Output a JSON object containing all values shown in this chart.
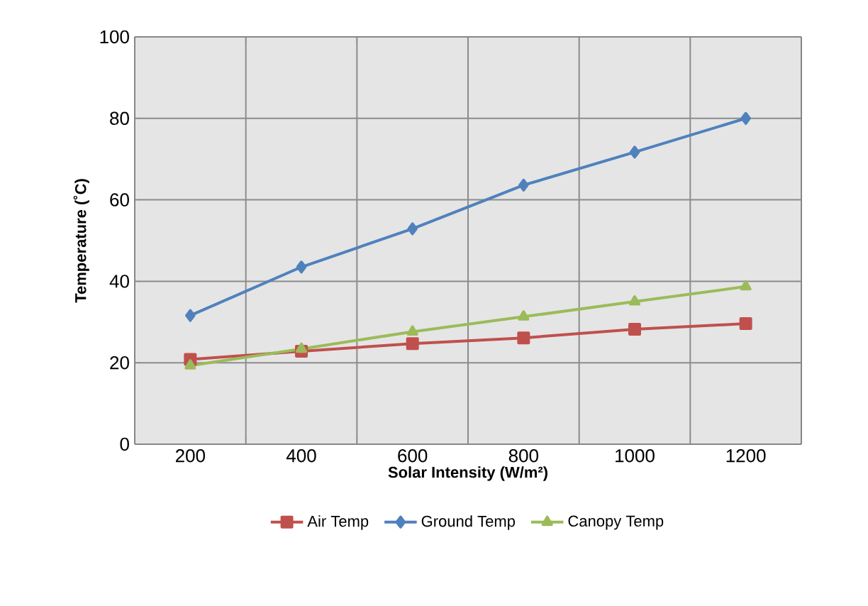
{
  "chart_data": {
    "type": "line",
    "xlabel": "Solar Intensity (W/m²)",
    "ylabel": "Temperature (˚C)",
    "categories": [
      "200",
      "400",
      "600",
      "800",
      "1000",
      "1200"
    ],
    "series": [
      {
        "name": "Air Temp",
        "color": "#c0504d",
        "marker": "square",
        "values": [
          20.8,
          22.8,
          24.7,
          26.1,
          28.2,
          29.6
        ]
      },
      {
        "name": "Ground Temp",
        "color": "#4f81bd",
        "marker": "diamond",
        "values": [
          31.6,
          43.5,
          52.9,
          63.6,
          71.7,
          80
        ]
      },
      {
        "name": "Canopy Temp",
        "color": "#9bbb59",
        "marker": "triangle",
        "values": [
          19.3,
          23.4,
          27.6,
          31.3,
          35.0,
          38.7
        ]
      }
    ],
    "ylim": [
      0,
      100
    ],
    "yticks": [
      0,
      20,
      40,
      60,
      80,
      100
    ],
    "grid": true,
    "legend": "bottom",
    "line_style": "solid"
  }
}
